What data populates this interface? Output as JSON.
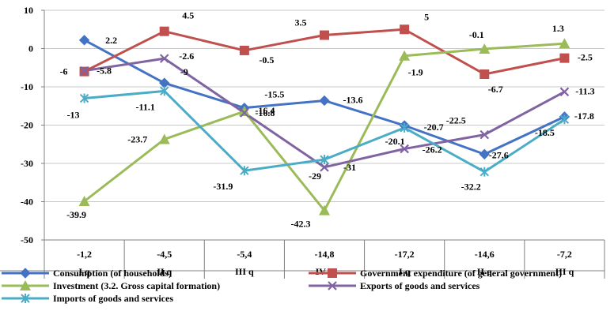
{
  "chart_data": {
    "type": "line",
    "categories": [
      {
        "value": "-1,2",
        "label": "I q"
      },
      {
        "value": "-4,5",
        "label": "II q"
      },
      {
        "value": "-5,4",
        "label": "III q"
      },
      {
        "value": "-14,8",
        "label": "IV q"
      },
      {
        "value": "-17,2",
        "label": "I q"
      },
      {
        "value": "-14,6",
        "label": "II q"
      },
      {
        "value": "-7,2",
        "label": "III q"
      }
    ],
    "ylim": [
      -50,
      10
    ],
    "yticks": [
      10,
      0,
      -10,
      -20,
      -30,
      -40,
      -50
    ],
    "grid": true,
    "legend_position": "bottom",
    "series": [
      {
        "name": "Consumption (of  households)",
        "color": "#4472C4",
        "marker": "diamond",
        "values": [
          2.2,
          -9,
          -15.5,
          -13.6,
          -20.1,
          -27.6,
          -17.8
        ],
        "labels": [
          "2.2",
          "-9",
          "-15.5",
          "-13.6",
          "-20.1",
          "-27.6",
          "-17.8"
        ]
      },
      {
        "name": "Government expenditure (of general government)",
        "color": "#C0504D",
        "marker": "square",
        "values": [
          -6,
          4.5,
          -0.5,
          3.5,
          5,
          -6.7,
          -2.5
        ],
        "labels": [
          "-6",
          "4.5",
          "-0.5",
          "3.5",
          "5",
          "-6.7",
          "-2.5"
        ]
      },
      {
        "name": "Investment (3.2. Gross capital formation)",
        "color": "#9BBB59",
        "marker": "triangle",
        "values": [
          -39.9,
          -23.7,
          -16.4,
          -42.3,
          -1.9,
          -0.1,
          1.3
        ],
        "labels": [
          "-39.9",
          "-23.7",
          "-16.4",
          "-42.3",
          "-1.9",
          "-0.1",
          "1.3"
        ]
      },
      {
        "name": "Exports of goods and services",
        "color": "#8064A2",
        "marker": "x",
        "values": [
          -5.8,
          -2.6,
          -16.8,
          -31,
          -26.2,
          -22.5,
          -11.3
        ],
        "labels": [
          "-5.8",
          "-2.6",
          "-16.8",
          "-31",
          "-26.2",
          "-22.5",
          "-11.3"
        ]
      },
      {
        "name": "Imports of goods and services",
        "color": "#4BACC6",
        "marker": "star",
        "values": [
          -13,
          -11.1,
          -31.9,
          -29,
          -20.7,
          -32.2,
          -18.5
        ],
        "labels": [
          "-13",
          "-11.1",
          "-31.9",
          "-29",
          "-20.7",
          "-32.2",
          "-18.5"
        ]
      }
    ]
  }
}
